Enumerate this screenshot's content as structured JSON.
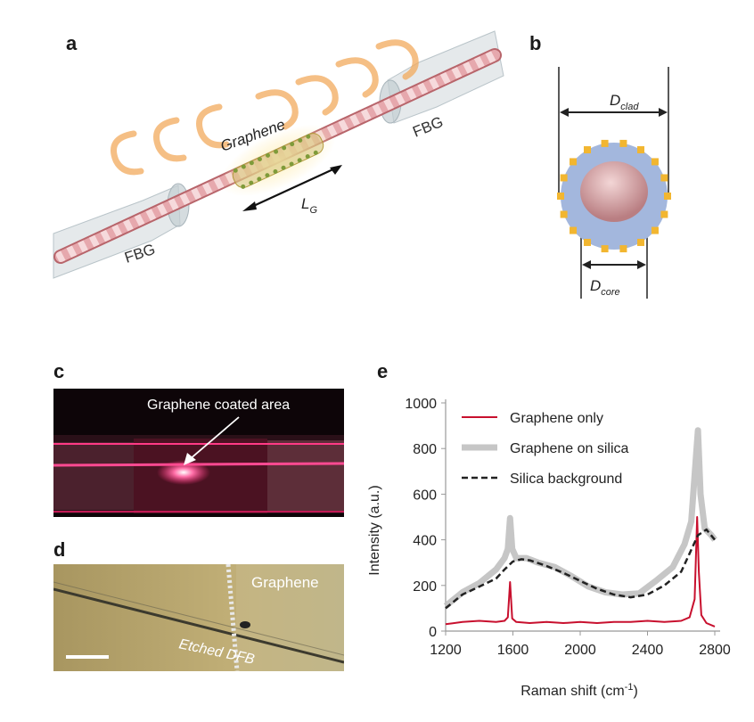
{
  "panels": {
    "a": {
      "letter": "a",
      "graphene_label": "Graphene",
      "fbg_left": "FBG",
      "fbg_right": "FBG",
      "length_label": "L",
      "length_sub": "G"
    },
    "b": {
      "letter": "b",
      "clad_label": "D",
      "clad_sub": "clad",
      "core_label": "D",
      "core_sub": "core"
    },
    "c": {
      "letter": "c",
      "annotation": "Graphene coated area"
    },
    "d": {
      "letter": "d",
      "graphene_label": "Graphene",
      "etched_label": "Etched DFB"
    },
    "e": {
      "letter": "e"
    }
  },
  "colors": {
    "fiber_pink": "#d9868c",
    "fiber_light": "#f2c6c8",
    "graphene_gold": "#e0b23a",
    "graphene_green": "#7a9a3a",
    "clad_blue": "#a3b7dd",
    "core_rose": "#c98a8e",
    "heat_orange": "#f4b26a",
    "series_red": "#c8102e",
    "series_gray": "#c0c0c0",
    "series_black": "#222222"
  },
  "chart_data": {
    "type": "line",
    "xlabel": "Raman shift (cm",
    "xlabel_sup": "-1",
    "xlabel_end": ")",
    "ylabel": "Intensity (a.u.)",
    "xlim": [
      1200,
      2800
    ],
    "ylim": [
      0,
      1000
    ],
    "xticks": [
      "1200",
      "1600",
      "2000",
      "2400",
      "2800"
    ],
    "yticks": [
      "0",
      "200",
      "400",
      "600",
      "800",
      "1000"
    ],
    "legend_position": "top-left",
    "series": [
      {
        "name": "Graphene only",
        "style": "red-solid",
        "x": [
          1200,
          1300,
          1400,
          1500,
          1550,
          1570,
          1583,
          1596,
          1620,
          1700,
          1800,
          1900,
          2000,
          2100,
          2200,
          2300,
          2400,
          2500,
          2600,
          2650,
          2680,
          2695,
          2705,
          2720,
          2750,
          2800
        ],
        "y": [
          30,
          40,
          45,
          40,
          45,
          60,
          215,
          55,
          40,
          35,
          40,
          35,
          40,
          35,
          40,
          40,
          45,
          40,
          45,
          60,
          140,
          500,
          260,
          70,
          35,
          20
        ]
      },
      {
        "name": "Graphene on silica",
        "style": "gray-thick",
        "x": [
          1200,
          1300,
          1400,
          1500,
          1550,
          1570,
          1583,
          1596,
          1620,
          1680,
          1750,
          1850,
          1950,
          2050,
          2150,
          2250,
          2350,
          2450,
          2550,
          2620,
          2660,
          2690,
          2700,
          2715,
          2740,
          2780,
          2800
        ],
        "y": [
          110,
          170,
          210,
          270,
          320,
          360,
          495,
          360,
          320,
          320,
          300,
          280,
          240,
          195,
          170,
          160,
          165,
          220,
          280,
          380,
          480,
          780,
          880,
          600,
          450,
          420,
          400
        ]
      },
      {
        "name": "Silica background",
        "style": "black-dashed",
        "x": [
          1200,
          1300,
          1400,
          1500,
          1550,
          1600,
          1650,
          1700,
          1800,
          1900,
          2000,
          2100,
          2200,
          2300,
          2400,
          2500,
          2600,
          2650,
          2700,
          2750,
          2800
        ],
        "y": [
          100,
          160,
          195,
          230,
          270,
          305,
          315,
          310,
          285,
          255,
          220,
          185,
          160,
          148,
          160,
          200,
          260,
          340,
          420,
          445,
          400
        ]
      }
    ]
  }
}
